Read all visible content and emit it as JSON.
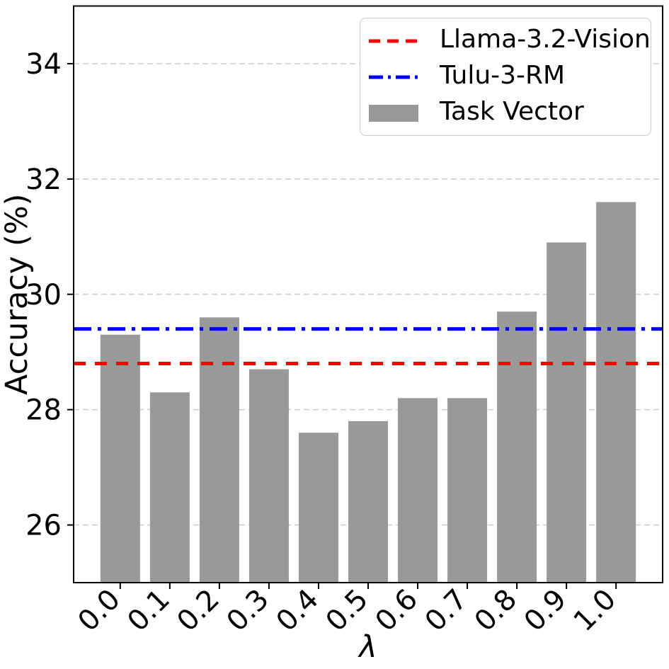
{
  "chart_data": {
    "type": "bar",
    "title": "",
    "xlabel": "λ",
    "ylabel": "Accuracy (%)",
    "categories": [
      "0.0",
      "0.1",
      "0.2",
      "0.3",
      "0.4",
      "0.5",
      "0.6",
      "0.7",
      "0.8",
      "0.9",
      "1.0"
    ],
    "values": [
      29.3,
      28.3,
      29.6,
      28.7,
      27.6,
      27.8,
      28.2,
      28.2,
      29.7,
      30.9,
      31.6
    ],
    "bar_color": "#999999",
    "ylim": [
      25,
      35
    ],
    "yticks": [
      26,
      28,
      30,
      32,
      34
    ],
    "grid": true,
    "grid_color": "#cccccc",
    "axis_color": "#000000",
    "reference_lines": [
      {
        "name": "llama-3-2-vision",
        "label": "Llama-3.2-Vision",
        "value": 28.8,
        "color": "#ff0000",
        "style": "dashed"
      },
      {
        "name": "tulu-3-rm",
        "label": "Tulu-3-RM",
        "value": 29.4,
        "color": "#0000ff",
        "style": "dashdot"
      }
    ],
    "legend": {
      "position": "upper right",
      "entries": [
        {
          "label": "Llama-3.2-Vision",
          "marker": "line",
          "style": "dashed",
          "color": "#ff0000"
        },
        {
          "label": "Tulu-3-RM",
          "marker": "line",
          "style": "dashdot",
          "color": "#0000ff"
        },
        {
          "label": "Task Vector",
          "marker": "patch",
          "color": "#999999"
        }
      ]
    }
  }
}
